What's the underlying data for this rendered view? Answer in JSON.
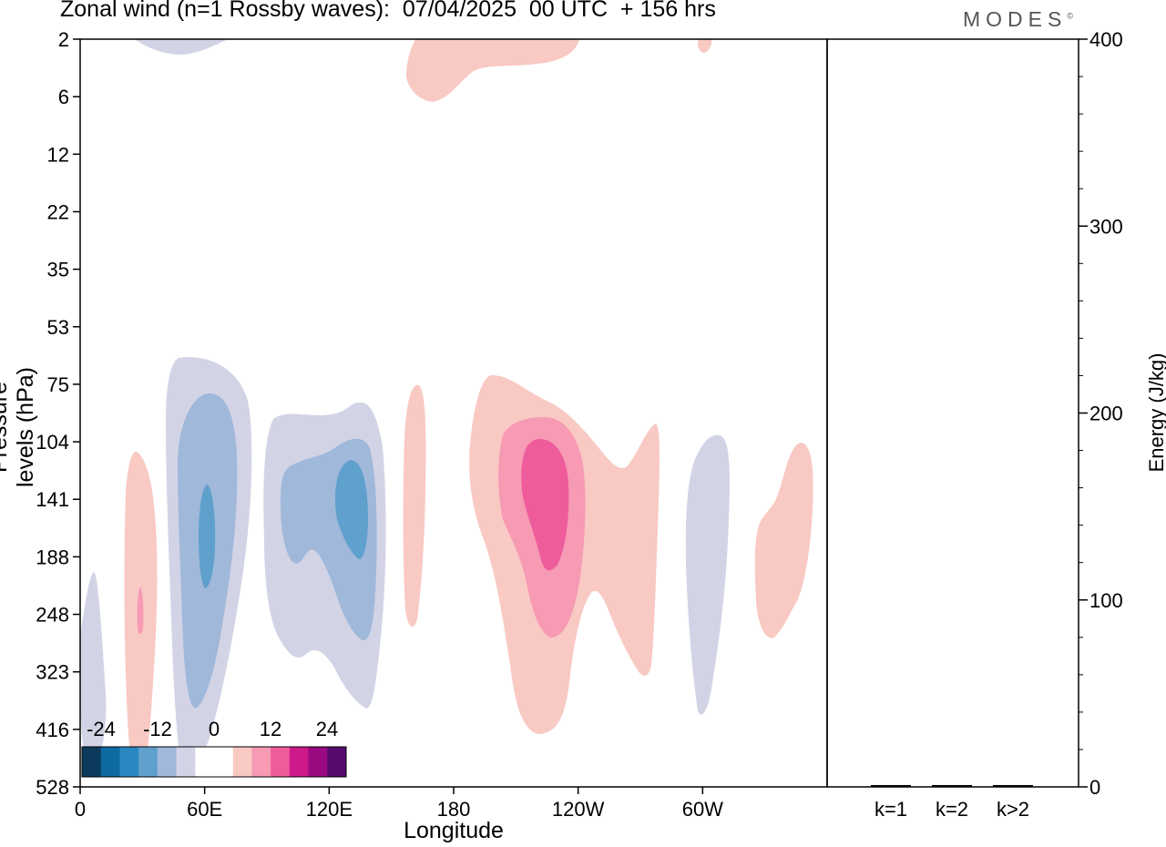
{
  "header": {
    "title": "Zonal wind (n=1 Rossby waves):  07/04/2025  00 UTC  + 156 hrs",
    "logo": "MODES",
    "logo_mark": "©"
  },
  "colors": {
    "neg": [
      "#0b3a5c",
      "#0f6aa0",
      "#2a87c0",
      "#5fa0cc",
      "#a0b8da",
      "#d2d4e6"
    ],
    "pos": [
      "#f9c9c4",
      "#f79ab4",
      "#ee5c9c",
      "#cc1a8a",
      "#990a80",
      "#560a6e"
    ],
    "zero": "#ffffff"
  },
  "chart_data": {
    "type": "heatmap",
    "title": "Zonal wind (n=1 Rossby waves):  07/04/2025  00 UTC  + 156 hrs",
    "xlabel": "Longitude",
    "ylabel": "Pressure levels (hPa)",
    "x_ticks": [
      "0",
      "60E",
      "120E",
      "180",
      "120W",
      "60W"
    ],
    "x_tick_values": [
      0,
      60,
      120,
      180,
      240,
      300
    ],
    "xlim": [
      0,
      360
    ],
    "y_ticks": [
      "2",
      "6",
      "12",
      "22",
      "35",
      "53",
      "75",
      "104",
      "141",
      "188",
      "248",
      "323",
      "416",
      "528"
    ],
    "colorbar": {
      "tick_labels": [
        "-24",
        "-12",
        "0",
        "12",
        "24"
      ],
      "levels": [
        -30,
        -24,
        -18,
        -12,
        -6,
        -3,
        3,
        6,
        12,
        18,
        24,
        30
      ]
    },
    "features": [
      {
        "sign": "negative",
        "center_lon": 60,
        "center_hPa": 180,
        "peak_level": -12
      },
      {
        "sign": "negative",
        "center_lon": 128,
        "center_hPa": 150,
        "peak_level": -12
      },
      {
        "sign": "negative",
        "center_lon": 5,
        "center_hPa": 330,
        "peak_level": -3
      },
      {
        "sign": "negative",
        "center_lon": 300,
        "center_hPa": 220,
        "peak_level": -3
      },
      {
        "sign": "negative",
        "center_lon": 48,
        "center_hPa": 2,
        "peak_level": -3
      },
      {
        "sign": "positive",
        "center_lon": 30,
        "center_hPa": 250,
        "peak_level": 6
      },
      {
        "sign": "positive",
        "center_lon": 160,
        "center_hPa": 160,
        "peak_level": 3
      },
      {
        "sign": "positive",
        "center_lon": 223,
        "center_hPa": 160,
        "peak_level": 12
      },
      {
        "sign": "positive",
        "center_lon": 335,
        "center_hPa": 180,
        "peak_level": 3
      },
      {
        "sign": "positive",
        "center_lon": 195,
        "center_hPa": 3,
        "peak_level": 3
      }
    ],
    "energy_panel": {
      "ylabel": "Energy (J/kg)",
      "y_ticks": [
        "0",
        "100",
        "200",
        "300",
        "400"
      ],
      "ylim": [
        0,
        400
      ],
      "categories": [
        "k=1",
        "k=2",
        "k>2"
      ],
      "values": [
        0.5,
        0.5,
        0.5
      ]
    }
  }
}
